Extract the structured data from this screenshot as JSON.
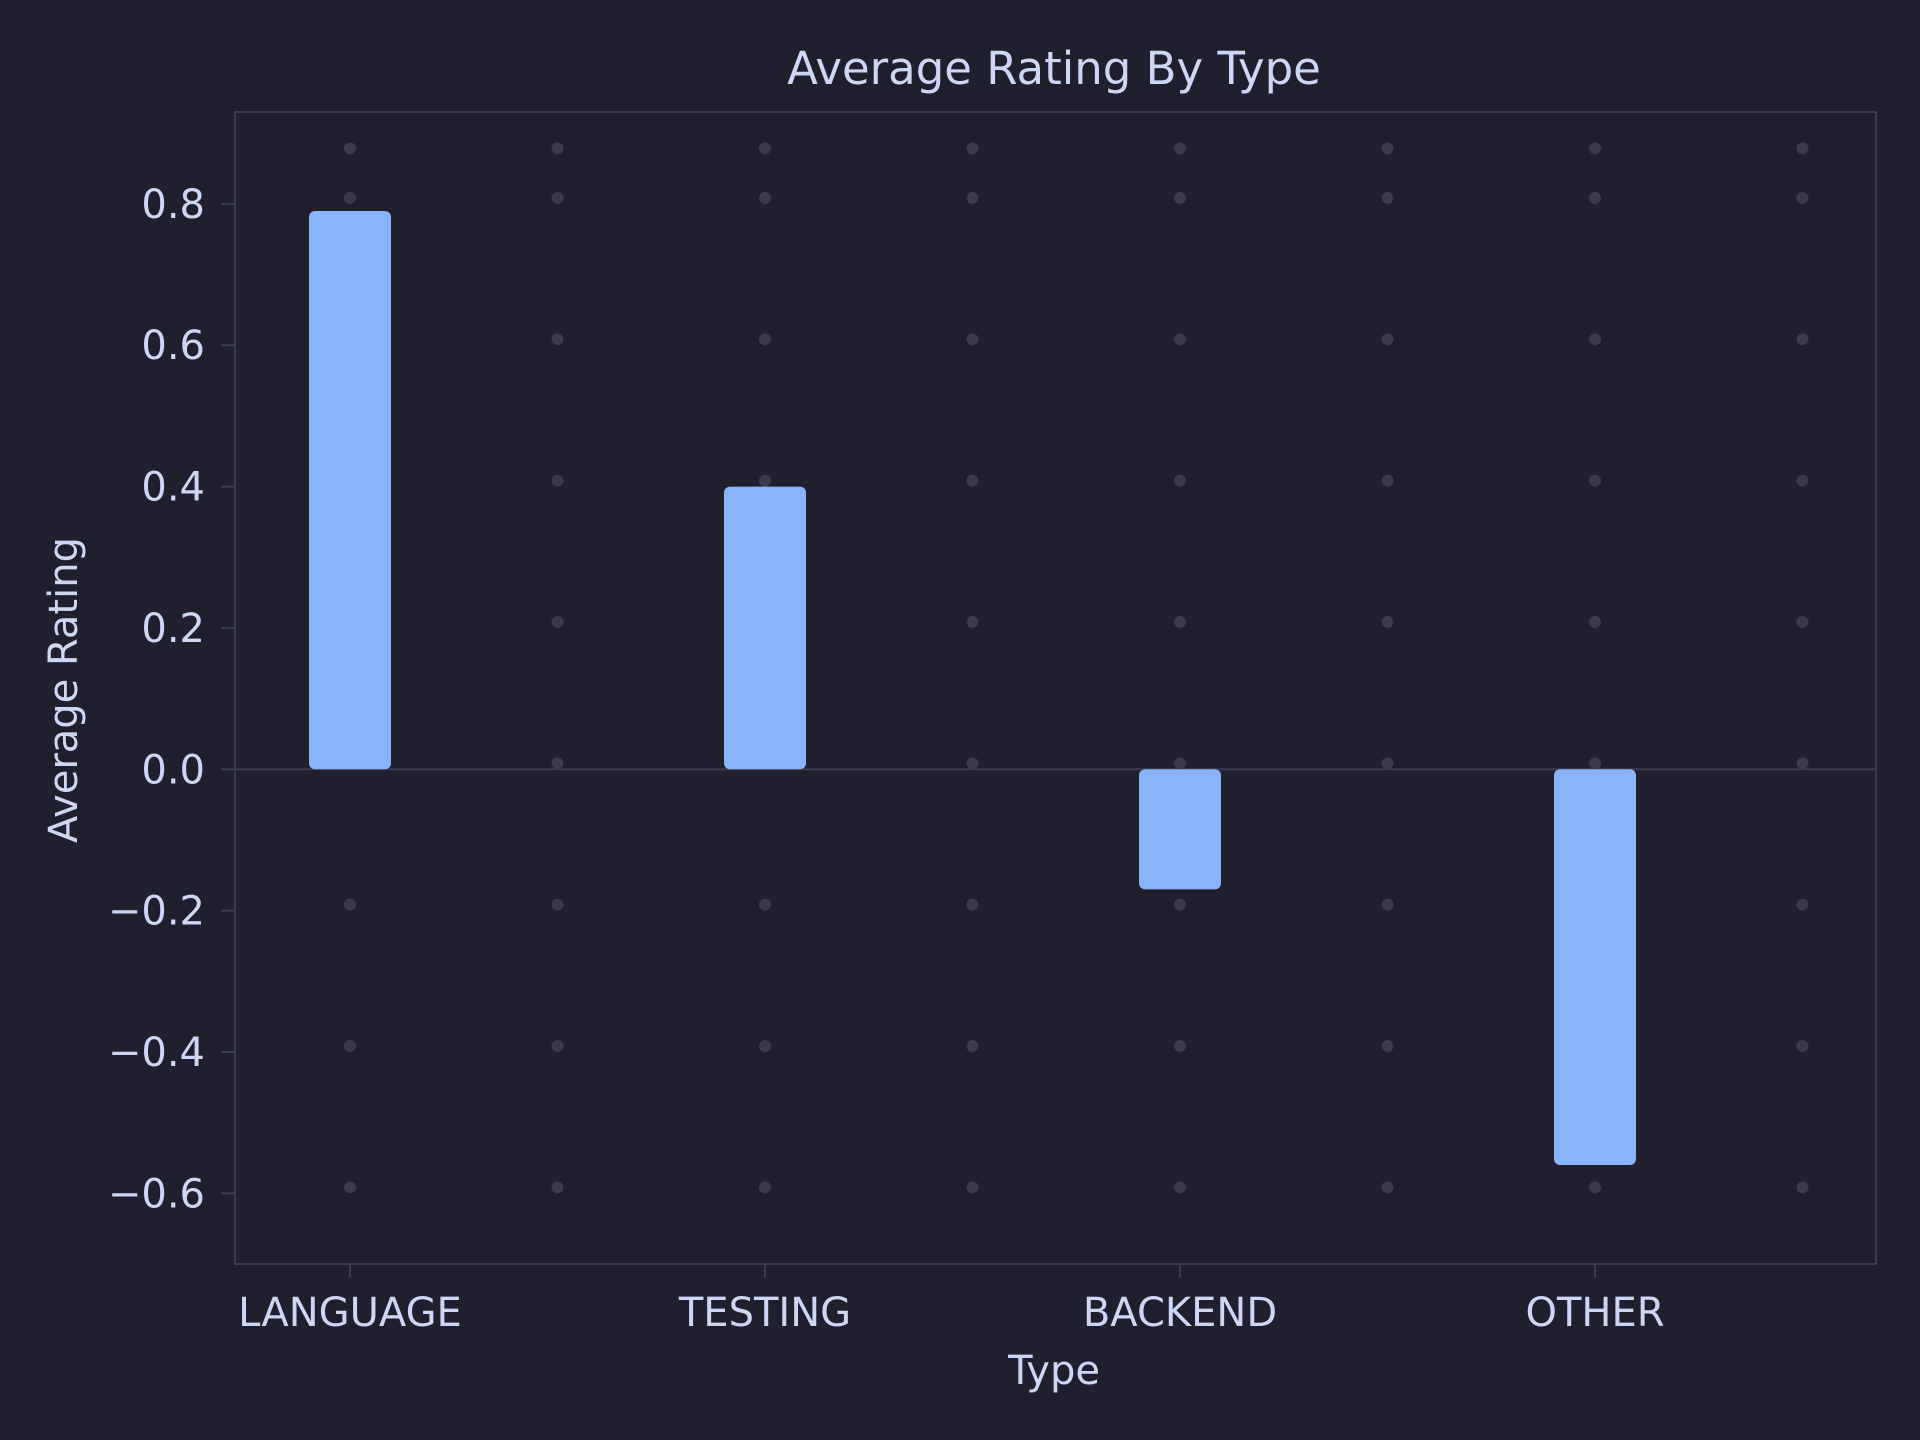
{
  "chart_data": {
    "type": "bar",
    "title": "Average Rating By Type",
    "xlabel": "Type",
    "ylabel": "Average Rating",
    "categories": [
      "LANGUAGE",
      "TESTING",
      "BACKEND",
      "OTHER"
    ],
    "values": [
      0.79,
      0.4,
      -0.17,
      -0.56
    ],
    "ylim": [
      -0.7,
      0.93
    ],
    "yticks": [
      -0.6,
      -0.4,
      -0.2,
      0.0,
      0.2,
      0.4,
      0.6,
      0.8
    ],
    "ytick_labels": [
      "−0.6",
      "−0.4",
      "−0.2",
      "0.0",
      "0.2",
      "0.4",
      "0.6",
      "0.8"
    ],
    "grid": "dotted",
    "legend": "none"
  },
  "colors": {
    "background": "#1f1f2e",
    "bar": "#89b4fa",
    "text": "#cdd6f4",
    "frame": "#3b3b4f",
    "grid_dot": "#3a3a4c",
    "zero_line": "#3b3b4f"
  }
}
